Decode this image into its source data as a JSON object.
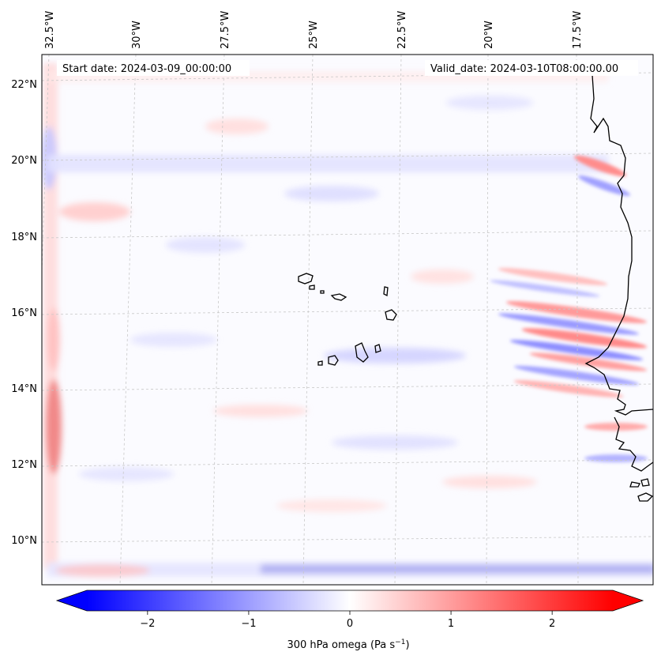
{
  "header": {
    "start_date": "Start date: 2024-03-09_00:00:00",
    "valid_date": "Valid_date: 2024-03-10T08:00:00.00"
  },
  "lon_labels": [
    "32.5°W",
    "30°W",
    "27.5°W",
    "25°W",
    "22.5°W",
    "20°W",
    "17.5°W"
  ],
  "lat_labels": [
    "22°N",
    "20°N",
    "18°N",
    "16°N",
    "14°N",
    "12°N",
    "10°N"
  ],
  "colorbar": {
    "label_prefix": "300 hPa omega (Pa s",
    "label_exp": "−1",
    "label_suffix": ")",
    "ticks": [
      "−2",
      "−1",
      "0",
      "1",
      "2"
    ],
    "tick_values": [
      -2,
      -1,
      0,
      1,
      2
    ],
    "range": [
      -2.6,
      2.6
    ],
    "low_color": "#0000ff",
    "mid_color": "#ffffff",
    "high_color": "#ff0000"
  },
  "colors": {
    "coastline": "#000000",
    "gridline": "#c8c8c8"
  }
}
